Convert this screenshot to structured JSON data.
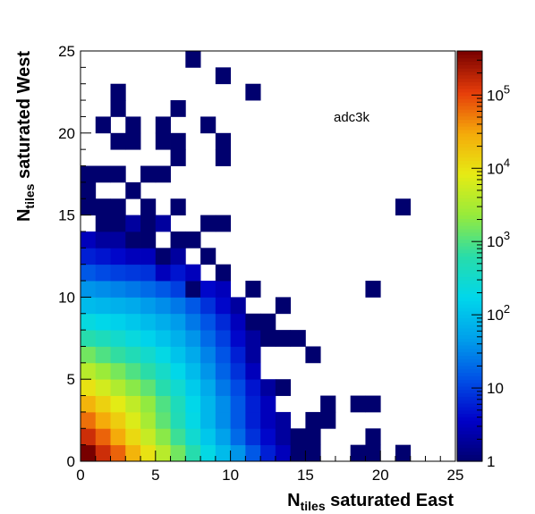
{
  "chart_data": {
    "type": "heatmap",
    "title": "",
    "annotation": "adc3k",
    "xlabel": {
      "main": "N",
      "sub": "tiles",
      "rest": " saturated East"
    },
    "ylabel": {
      "main": "N",
      "sub": "tiles",
      "rest": " saturated West"
    },
    "xlim": [
      0,
      25
    ],
    "ylim": [
      0,
      25
    ],
    "bin_width": 1,
    "x_ticks": [
      0,
      5,
      10,
      15,
      20,
      25
    ],
    "y_ticks": [
      0,
      5,
      10,
      15,
      20,
      25
    ],
    "grid": false,
    "colorbar": {
      "scale": "log",
      "range": [
        1,
        400000
      ],
      "tick_labels": [
        {
          "value": 1,
          "base": "1",
          "exp": ""
        },
        {
          "value": 10,
          "base": "10",
          "exp": ""
        },
        {
          "value": 100,
          "base": "10",
          "exp": "2"
        },
        {
          "value": 1000,
          "base": "10",
          "exp": "3"
        },
        {
          "value": 10000,
          "base": "10",
          "exp": "4"
        },
        {
          "value": 100000,
          "base": "10",
          "exp": "5"
        }
      ]
    },
    "cells_note": "each cell: [x_bin_low, y_bin_low, approx_count]",
    "cells": [
      [
        0,
        0,
        400000
      ],
      [
        1,
        0,
        150000
      ],
      [
        2,
        0,
        70000
      ],
      [
        3,
        0,
        25000
      ],
      [
        4,
        0,
        10000
      ],
      [
        5,
        0,
        4000
      ],
      [
        6,
        0,
        1500
      ],
      [
        7,
        0,
        600
      ],
      [
        8,
        0,
        200
      ],
      [
        9,
        0,
        90
      ],
      [
        10,
        0,
        40
      ],
      [
        11,
        0,
        15
      ],
      [
        12,
        0,
        6
      ],
      [
        13,
        0,
        3
      ],
      [
        14,
        0,
        1
      ],
      [
        15,
        0,
        1
      ],
      [
        18,
        0,
        1
      ],
      [
        19,
        0,
        1
      ],
      [
        21,
        0,
        1
      ],
      [
        0,
        1,
        150000
      ],
      [
        1,
        1,
        70000
      ],
      [
        2,
        1,
        30000
      ],
      [
        3,
        1,
        12000
      ],
      [
        4,
        1,
        5000
      ],
      [
        5,
        1,
        2000
      ],
      [
        6,
        1,
        800
      ],
      [
        7,
        1,
        300
      ],
      [
        8,
        1,
        120
      ],
      [
        9,
        1,
        50
      ],
      [
        10,
        1,
        20
      ],
      [
        11,
        1,
        8
      ],
      [
        12,
        1,
        4
      ],
      [
        13,
        1,
        2
      ],
      [
        14,
        1,
        1
      ],
      [
        15,
        1,
        1
      ],
      [
        19,
        1,
        1
      ],
      [
        0,
        2,
        60000
      ],
      [
        1,
        2,
        30000
      ],
      [
        2,
        2,
        15000
      ],
      [
        3,
        2,
        7000
      ],
      [
        4,
        2,
        3000
      ],
      [
        5,
        2,
        1200
      ],
      [
        6,
        2,
        500
      ],
      [
        7,
        2,
        200
      ],
      [
        8,
        2,
        80
      ],
      [
        9,
        2,
        35
      ],
      [
        10,
        2,
        15
      ],
      [
        11,
        2,
        6
      ],
      [
        12,
        2,
        3
      ],
      [
        13,
        2,
        2
      ],
      [
        15,
        2,
        1
      ],
      [
        16,
        2,
        1
      ],
      [
        0,
        3,
        25000
      ],
      [
        1,
        3,
        14000
      ],
      [
        2,
        3,
        8000
      ],
      [
        3,
        3,
        4500
      ],
      [
        4,
        3,
        2200
      ],
      [
        5,
        3,
        1000
      ],
      [
        6,
        3,
        450
      ],
      [
        7,
        3,
        180
      ],
      [
        8,
        3,
        80
      ],
      [
        9,
        3,
        35
      ],
      [
        10,
        3,
        15
      ],
      [
        11,
        3,
        6
      ],
      [
        12,
        3,
        3
      ],
      [
        16,
        3,
        1
      ],
      [
        18,
        3,
        1
      ],
      [
        19,
        3,
        1
      ],
      [
        0,
        4,
        10000
      ],
      [
        1,
        4,
        6000
      ],
      [
        2,
        4,
        3500
      ],
      [
        3,
        4,
        2000
      ],
      [
        4,
        4,
        1200
      ],
      [
        5,
        4,
        600
      ],
      [
        6,
        4,
        300
      ],
      [
        7,
        4,
        130
      ],
      [
        8,
        4,
        60
      ],
      [
        9,
        4,
        25
      ],
      [
        10,
        4,
        12
      ],
      [
        11,
        4,
        5
      ],
      [
        12,
        4,
        2
      ],
      [
        13,
        4,
        1
      ],
      [
        0,
        5,
        4000
      ],
      [
        1,
        5,
        2500
      ],
      [
        2,
        5,
        1600
      ],
      [
        3,
        5,
        1000
      ],
      [
        4,
        5,
        650
      ],
      [
        5,
        5,
        350
      ],
      [
        6,
        5,
        180
      ],
      [
        7,
        5,
        90
      ],
      [
        8,
        5,
        40
      ],
      [
        9,
        5,
        18
      ],
      [
        10,
        5,
        8
      ],
      [
        11,
        5,
        3
      ],
      [
        0,
        6,
        1500
      ],
      [
        1,
        6,
        1000
      ],
      [
        2,
        6,
        700
      ],
      [
        3,
        6,
        500
      ],
      [
        4,
        6,
        320
      ],
      [
        5,
        6,
        200
      ],
      [
        6,
        6,
        110
      ],
      [
        7,
        6,
        60
      ],
      [
        8,
        6,
        30
      ],
      [
        9,
        6,
        14
      ],
      [
        10,
        6,
        6
      ],
      [
        11,
        6,
        2
      ],
      [
        15,
        6,
        1
      ],
      [
        0,
        7,
        600
      ],
      [
        1,
        7,
        450
      ],
      [
        2,
        7,
        320
      ],
      [
        3,
        7,
        230
      ],
      [
        4,
        7,
        160
      ],
      [
        5,
        7,
        110
      ],
      [
        6,
        7,
        70
      ],
      [
        7,
        7,
        40
      ],
      [
        8,
        7,
        20
      ],
      [
        9,
        7,
        10
      ],
      [
        10,
        7,
        4
      ],
      [
        11,
        7,
        2
      ],
      [
        12,
        7,
        1
      ],
      [
        13,
        7,
        1
      ],
      [
        14,
        7,
        1
      ],
      [
        0,
        8,
        220
      ],
      [
        1,
        8,
        180
      ],
      [
        2,
        8,
        150
      ],
      [
        3,
        8,
        120
      ],
      [
        4,
        8,
        90
      ],
      [
        5,
        8,
        65
      ],
      [
        6,
        8,
        45
      ],
      [
        7,
        8,
        25
      ],
      [
        8,
        8,
        14
      ],
      [
        9,
        8,
        7
      ],
      [
        10,
        8,
        3
      ],
      [
        11,
        8,
        1
      ],
      [
        12,
        8,
        1
      ],
      [
        0,
        9,
        90
      ],
      [
        1,
        9,
        80
      ],
      [
        2,
        9,
        70
      ],
      [
        3,
        9,
        60
      ],
      [
        4,
        9,
        45
      ],
      [
        5,
        9,
        35
      ],
      [
        6,
        9,
        25
      ],
      [
        7,
        9,
        15
      ],
      [
        8,
        9,
        8
      ],
      [
        9,
        9,
        4
      ],
      [
        10,
        9,
        2
      ],
      [
        13,
        9,
        1
      ],
      [
        0,
        10,
        40
      ],
      [
        1,
        10,
        35
      ],
      [
        2,
        10,
        30
      ],
      [
        3,
        10,
        25
      ],
      [
        4,
        10,
        20
      ],
      [
        5,
        10,
        15
      ],
      [
        6,
        10,
        10
      ],
      [
        7,
        10,
        1
      ],
      [
        8,
        10,
        4
      ],
      [
        9,
        10,
        3
      ],
      [
        11,
        10,
        1
      ],
      [
        19,
        10,
        1
      ],
      [
        0,
        11,
        15
      ],
      [
        1,
        11,
        12
      ],
      [
        2,
        11,
        10
      ],
      [
        3,
        11,
        9
      ],
      [
        4,
        11,
        8
      ],
      [
        5,
        11,
        3
      ],
      [
        6,
        11,
        5
      ],
      [
        7,
        11,
        3
      ],
      [
        9,
        11,
        1
      ],
      [
        0,
        12,
        6
      ],
      [
        1,
        12,
        5
      ],
      [
        2,
        12,
        4
      ],
      [
        3,
        12,
        3
      ],
      [
        4,
        12,
        3
      ],
      [
        5,
        12,
        1
      ],
      [
        6,
        12,
        2
      ],
      [
        8,
        12,
        1
      ],
      [
        0,
        13,
        3
      ],
      [
        1,
        13,
        2
      ],
      [
        2,
        13,
        2
      ],
      [
        3,
        13,
        1
      ],
      [
        4,
        13,
        1
      ],
      [
        6,
        13,
        1
      ],
      [
        7,
        13,
        1
      ],
      [
        1,
        14,
        1
      ],
      [
        2,
        14,
        1
      ],
      [
        3,
        14,
        2
      ],
      [
        4,
        14,
        1
      ],
      [
        5,
        14,
        2
      ],
      [
        8,
        14,
        1
      ],
      [
        9,
        14,
        1
      ],
      [
        0,
        15,
        1
      ],
      [
        1,
        15,
        1
      ],
      [
        2,
        15,
        1
      ],
      [
        4,
        15,
        1
      ],
      [
        6,
        15,
        1
      ],
      [
        21,
        15,
        1
      ],
      [
        0,
        16,
        1
      ],
      [
        3,
        16,
        1
      ],
      [
        0,
        17,
        1
      ],
      [
        1,
        17,
        1
      ],
      [
        2,
        17,
        1
      ],
      [
        4,
        17,
        1
      ],
      [
        5,
        17,
        1
      ],
      [
        6,
        18,
        1
      ],
      [
        9,
        18,
        1
      ],
      [
        2,
        19,
        1
      ],
      [
        3,
        19,
        1
      ],
      [
        5,
        19,
        1
      ],
      [
        6,
        19,
        1
      ],
      [
        9,
        19,
        1
      ],
      [
        1,
        20,
        1
      ],
      [
        3,
        20,
        1
      ],
      [
        5,
        20,
        1
      ],
      [
        8,
        20,
        1
      ],
      [
        2,
        21,
        1
      ],
      [
        6,
        21,
        1
      ],
      [
        2,
        22,
        1
      ],
      [
        11,
        22,
        1
      ],
      [
        9,
        23,
        1
      ],
      [
        7,
        24,
        1
      ]
    ]
  }
}
